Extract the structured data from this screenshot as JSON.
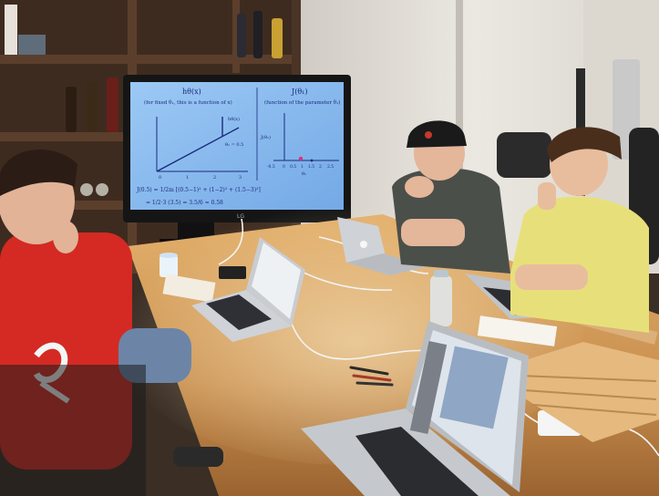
{
  "colors": {
    "wall": "#e9e6e0",
    "shelf": "#4a3426",
    "table": "#c89152",
    "screen": "#7fb8f0",
    "hoodie": "#d42a23",
    "yellow_shirt": "#e7e07a"
  },
  "tv": {
    "left_title": "hθ(x)",
    "left_subtitle": "(for fixed θ₁, this is a function of x)",
    "right_title": "J(θ₁)",
    "right_subtitle": "(function of the parameter θ₁)",
    "line_label_a": "hθ(x)",
    "line_label_b": "θ₁ = 0.5",
    "right_y_label": "J(θ₁)",
    "right_x_label": "θ₁",
    "left_x_ticks": [
      "0",
      "1",
      "2",
      "3"
    ],
    "right_x_ticks": [
      "-0.5",
      "0",
      "0.5",
      "1",
      "1.5",
      "2",
      "2.5"
    ],
    "formula_line1": "J(0.5) = 1/2m [(0.5−1)² + (1−2)² + (1.5−3)²]",
    "formula_line2": "= 1/2·3 (3.5) = 3.5/6 ≈ 0.58",
    "brand": "LG"
  }
}
